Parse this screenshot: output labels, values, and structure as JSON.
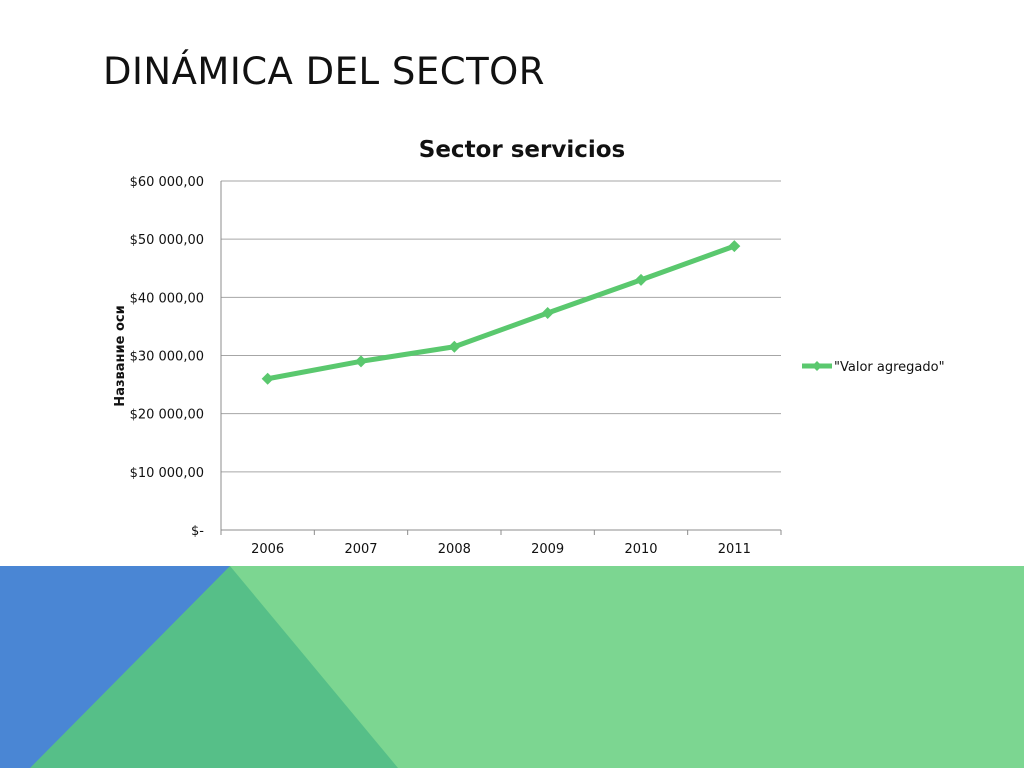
{
  "slide": {
    "title": "DINÁMICA DEL SECTOR"
  },
  "chart_data": {
    "type": "line",
    "title": "Sector servicios",
    "xlabel": "",
    "ylabel": "Название оси",
    "categories": [
      "2006",
      "2007",
      "2008",
      "2009",
      "2010",
      "2011"
    ],
    "series": [
      {
        "name": "\"Valor agregado\"",
        "values": [
          26000,
          29000,
          31500,
          37300,
          43000,
          48800
        ],
        "color": "#5ac86e"
      }
    ],
    "ylim": [
      0,
      60000
    ],
    "yticks": [
      0,
      10000,
      20000,
      30000,
      40000,
      50000,
      60000
    ],
    "ytick_labels": [
      "$-",
      "$10 000,00",
      "$20 000,00",
      "$30 000,00",
      "$40 000,00",
      "$50 000,00",
      "$60 000,00"
    ],
    "grid": true,
    "legend_position": "right"
  },
  "decoration": {
    "colors": {
      "blue": "#4a86d4",
      "teal": "#56bf88",
      "green": "#7cd691",
      "gridline": "#a6a6a6",
      "axis": "#8c8c8c"
    }
  }
}
